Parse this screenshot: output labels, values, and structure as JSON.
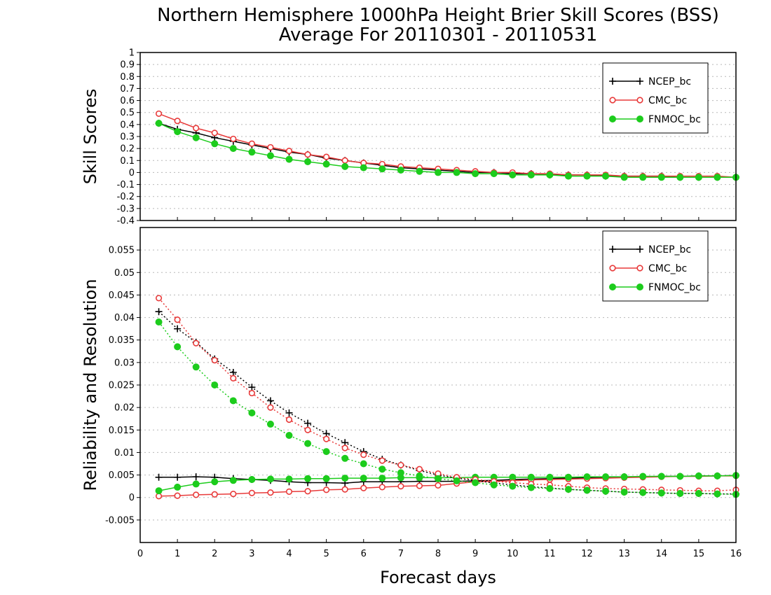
{
  "title_line1": "Northern Hemisphere 1000hPa Height Brier Skill Scores (BSS)",
  "title_line2": "Average For 20110301 - 20110531",
  "xlabel": "Forecast days",
  "x_ticks": [
    "0",
    "1",
    "2",
    "3",
    "4",
    "5",
    "6",
    "7",
    "8",
    "9",
    "10",
    "11",
    "12",
    "13",
    "14",
    "15",
    "16"
  ],
  "colors": {
    "NCEP_bc": "#000000",
    "CMC_bc": "#e83a3a",
    "FNMOC_bc": "#1ccc1c"
  },
  "chart_data": [
    {
      "type": "line",
      "ylabel": "Skill Scores",
      "xlim": [
        0,
        16
      ],
      "ylim": [
        -0.4,
        1
      ],
      "y_ticks": [
        "-0.4",
        "-0.3",
        "-0.2",
        "-0.1",
        "0",
        "0.1",
        "0.2",
        "0.3",
        "0.4",
        "0.5",
        "0.6",
        "0.7",
        "0.8",
        "0.9",
        "1"
      ],
      "grid": true,
      "legend": "top-right",
      "x": [
        0.5,
        1,
        1.5,
        2,
        2.5,
        3,
        3.5,
        4,
        4.5,
        5,
        5.5,
        6,
        6.5,
        7,
        7.5,
        8,
        8.5,
        9,
        9.5,
        10,
        10.5,
        11,
        11.5,
        12,
        12.5,
        13,
        13.5,
        14,
        14.5,
        15,
        15.5,
        16
      ],
      "series": [
        {
          "name": "NCEP_bc",
          "style": "solid",
          "marker": "plus",
          "values": [
            0.41,
            0.36,
            0.33,
            0.29,
            0.26,
            0.23,
            0.2,
            0.17,
            0.15,
            0.12,
            0.1,
            0.08,
            0.06,
            0.04,
            0.03,
            0.02,
            0.01,
            0,
            0,
            -0.01,
            -0.01,
            -0.02,
            -0.02,
            -0.02,
            -0.03,
            -0.03,
            -0.03,
            -0.03,
            -0.04,
            -0.04,
            -0.04,
            -0.04
          ]
        },
        {
          "name": "CMC_bc",
          "style": "solid",
          "marker": "open-circle",
          "values": [
            0.49,
            0.43,
            0.37,
            0.33,
            0.28,
            0.24,
            0.21,
            0.18,
            0.15,
            0.13,
            0.1,
            0.08,
            0.07,
            0.05,
            0.04,
            0.03,
            0.02,
            0.01,
            0,
            0,
            -0.01,
            -0.01,
            -0.02,
            -0.02,
            -0.02,
            -0.03,
            -0.03,
            -0.03,
            -0.03,
            -0.03,
            -0.03,
            -0.04
          ]
        },
        {
          "name": "FNMOC_bc",
          "style": "solid",
          "marker": "filled-circle",
          "values": [
            0.41,
            0.34,
            0.29,
            0.24,
            0.2,
            0.17,
            0.14,
            0.11,
            0.09,
            0.07,
            0.05,
            0.04,
            0.03,
            0.02,
            0.01,
            0,
            0,
            -0.01,
            -0.01,
            -0.02,
            -0.02,
            -0.02,
            -0.03,
            -0.03,
            -0.03,
            -0.04,
            -0.04,
            -0.04,
            -0.04,
            -0.04,
            -0.04,
            -0.04
          ]
        }
      ]
    },
    {
      "type": "line",
      "ylabel": "Reliability and Resolution",
      "xlim": [
        0,
        16
      ],
      "ylim": [
        -0.01,
        0.06
      ],
      "y_ticks": [
        "-0.005",
        "0",
        "0.005",
        "0.01",
        "0.015",
        "0.02",
        "0.025",
        "0.03",
        "0.035",
        "0.04",
        "0.045",
        "0.05",
        "0.055"
      ],
      "grid": true,
      "legend": "top-right",
      "x": [
        0.5,
        1,
        1.5,
        2,
        2.5,
        3,
        3.5,
        4,
        4.5,
        5,
        5.5,
        6,
        6.5,
        7,
        7.5,
        8,
        8.5,
        9,
        9.5,
        10,
        10.5,
        11,
        11.5,
        12,
        12.5,
        13,
        13.5,
        14,
        14.5,
        15,
        15.5,
        16
      ],
      "series": [
        {
          "name": "NCEP_bc",
          "style": "solid",
          "marker": "plus",
          "values": [
            0.0045,
            0.0045,
            0.0046,
            0.0045,
            0.0042,
            0.004,
            0.0038,
            0.0035,
            0.0033,
            0.0033,
            0.0032,
            0.0035,
            0.0035,
            0.0035,
            0.0036,
            0.0036,
            0.0036,
            0.0037,
            0.0038,
            0.004,
            0.0041,
            0.0042,
            0.0043,
            0.0044,
            0.0045,
            0.0046,
            0.0046,
            0.0047,
            0.0047,
            0.0048,
            0.0048,
            0.0049
          ]
        },
        {
          "name": "CMC_bc",
          "style": "solid",
          "marker": "open-circle",
          "values": [
            0.0003,
            0.0004,
            0.0006,
            0.0007,
            0.0008,
            0.001,
            0.0011,
            0.0013,
            0.0014,
            0.0017,
            0.0018,
            0.0021,
            0.0023,
            0.0025,
            0.0026,
            0.0027,
            0.0031,
            0.0035,
            0.0036,
            0.0037,
            0.0039,
            0.004,
            0.0041,
            0.0042,
            0.0043,
            0.0044,
            0.0045,
            0.0046,
            0.0047,
            0.0047,
            0.0048,
            0.0048
          ]
        },
        {
          "name": "FNMOC_bc",
          "style": "solid",
          "marker": "filled-circle",
          "values": [
            0.0015,
            0.0023,
            0.003,
            0.0035,
            0.0038,
            0.004,
            0.0041,
            0.0041,
            0.0042,
            0.0042,
            0.0043,
            0.0043,
            0.0043,
            0.0044,
            0.0044,
            0.0044,
            0.0044,
            0.0045,
            0.0045,
            0.0045,
            0.0045,
            0.0045,
            0.0045,
            0.0046,
            0.0046,
            0.0046,
            0.0047,
            0.0047,
            0.0047,
            0.0048,
            0.0048,
            0.0049
          ]
        },
        {
          "name": "NCEP_bc",
          "style": "dotted",
          "marker": "plus",
          "values": [
            0.0413,
            0.0375,
            0.0345,
            0.0308,
            0.0278,
            0.0245,
            0.0215,
            0.0188,
            0.0165,
            0.0142,
            0.0122,
            0.0102,
            0.0085,
            0.0072,
            0.006,
            0.005,
            0.0043,
            0.0038,
            0.0032,
            0.0028,
            0.0024,
            0.0021,
            0.0018,
            0.0016,
            0.0014,
            0.0012,
            0.0011,
            0.001,
            0.0009,
            0.0009,
            0.0008,
            0.0008
          ]
        },
        {
          "name": "CMC_bc",
          "style": "dotted",
          "marker": "open-circle",
          "values": [
            0.0443,
            0.0395,
            0.0343,
            0.0305,
            0.0265,
            0.0232,
            0.02,
            0.0173,
            0.015,
            0.013,
            0.011,
            0.0095,
            0.0082,
            0.0072,
            0.0063,
            0.0053,
            0.0045,
            0.004,
            0.0036,
            0.0033,
            0.003,
            0.0028,
            0.0025,
            0.0022,
            0.002,
            0.0019,
            0.0018,
            0.0017,
            0.0016,
            0.0015,
            0.0015,
            0.0017
          ]
        },
        {
          "name": "FNMOC_bc",
          "style": "dotted",
          "marker": "filled-circle",
          "values": [
            0.039,
            0.0335,
            0.029,
            0.025,
            0.0215,
            0.0188,
            0.0163,
            0.0138,
            0.012,
            0.0102,
            0.0087,
            0.0075,
            0.0063,
            0.0055,
            0.0048,
            0.0042,
            0.0037,
            0.0033,
            0.0028,
            0.0025,
            0.0022,
            0.002,
            0.0018,
            0.0016,
            0.0014,
            0.0012,
            0.0011,
            0.001,
            0.0009,
            0.0009,
            0.0008,
            0.0007
          ]
        }
      ]
    }
  ]
}
